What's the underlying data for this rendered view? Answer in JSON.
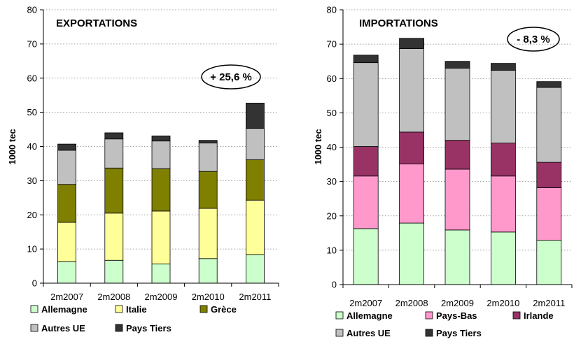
{
  "chart_data": [
    {
      "type": "bar",
      "stacked": true,
      "title": "EXPORTATIONS",
      "badge": "+ 25,6 %",
      "xlabel": "",
      "ylabel": "1000 tec",
      "ylim": [
        0,
        80
      ],
      "yticks": [
        "0",
        "10",
        "20",
        "30",
        "40",
        "50",
        "60",
        "70",
        "80"
      ],
      "grid": "horizontal dotted",
      "legend_position": "bottom",
      "categories": [
        "2m2007",
        "2m2008",
        "2m2009",
        "2m2010",
        "2m2011"
      ],
      "series": [
        {
          "name": "Allemagne",
          "color": "#ccffcc",
          "values": [
            6.3,
            6.7,
            5.6,
            7.2,
            8.3
          ]
        },
        {
          "name": "Italie",
          "color": "#ffff99",
          "values": [
            11.5,
            13.8,
            15.5,
            14.7,
            16.0
          ]
        },
        {
          "name": "Grèce",
          "color": "#808000",
          "values": [
            11.1,
            13.2,
            12.4,
            10.8,
            11.8
          ]
        },
        {
          "name": "Autres UE",
          "color": "#c0c0c0",
          "values": [
            10.0,
            8.5,
            8.1,
            8.3,
            9.2
          ]
        },
        {
          "name": "Pays Tiers",
          "color": "#333333",
          "values": [
            1.8,
            1.8,
            1.5,
            0.8,
            7.4
          ]
        }
      ]
    },
    {
      "type": "bar",
      "stacked": true,
      "title": "IMPORTATIONS",
      "badge": "- 8,3 %",
      "xlabel": "",
      "ylabel": "1000 tec",
      "ylim": [
        0,
        80
      ],
      "yticks": [
        "0",
        "10",
        "20",
        "30",
        "40",
        "50",
        "60",
        "70",
        "80"
      ],
      "grid": "horizontal dotted",
      "legend_position": "bottom",
      "categories": [
        "2m2007",
        "2m2008",
        "2m2009",
        "2m2010",
        "2m2011"
      ],
      "series": [
        {
          "name": "Allemagne",
          "color": "#ccffcc",
          "values": [
            16.3,
            17.9,
            15.9,
            15.3,
            12.9
          ]
        },
        {
          "name": "Pays-Bas",
          "color": "#ff99cc",
          "values": [
            15.3,
            17.2,
            17.7,
            16.3,
            15.3
          ]
        },
        {
          "name": "Irlande",
          "color": "#993366",
          "values": [
            8.6,
            9.3,
            8.4,
            9.6,
            7.4
          ]
        },
        {
          "name": "Autres UE",
          "color": "#c0c0c0",
          "values": [
            24.4,
            24.3,
            21.0,
            21.2,
            21.8
          ]
        },
        {
          "name": "Pays Tiers",
          "color": "#333333",
          "values": [
            2.2,
            3.0,
            2.0,
            2.0,
            1.7
          ]
        }
      ]
    }
  ]
}
